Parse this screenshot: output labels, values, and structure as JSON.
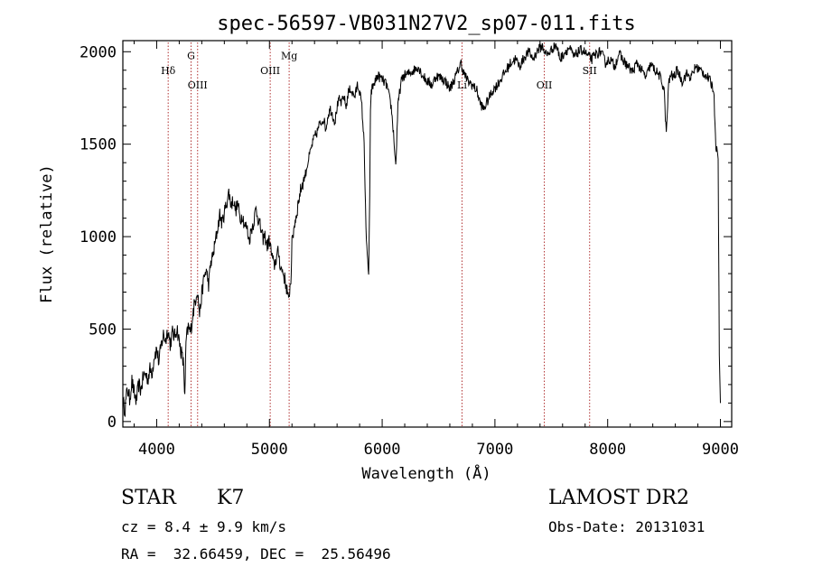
{
  "chart_data": {
    "type": "line",
    "title": "spec-56597-VB031N27V2_sp07-011.fits",
    "xlabel": "Wavelength (Å)",
    "ylabel": "Flux (relative)",
    "xlim": [
      3700,
      9100
    ],
    "ylim": [
      -30,
      2060
    ],
    "xticks": [
      4000,
      5000,
      6000,
      7000,
      8000,
      9000
    ],
    "yticks": [
      0,
      500,
      1000,
      1500,
      2000
    ],
    "grid": false,
    "legend": "none",
    "line_color": "#000000",
    "marker_color": "#b03030",
    "lines": [
      {
        "name": "Hδ",
        "x": 4102,
        "label_y": 1880
      },
      {
        "name": "G",
        "x": 4305,
        "label_y": 1960
      },
      {
        "name": "OIII",
        "x": 4363,
        "label_y": 1800
      },
      {
        "name": "OIII",
        "x": 5007,
        "label_y": 1880
      },
      {
        "name": "Mg",
        "x": 5175,
        "label_y": 1960
      },
      {
        "name": "Li",
        "x": 6708,
        "label_y": 1800
      },
      {
        "name": "OII",
        "x": 7438,
        "label_y": 1800
      },
      {
        "name": "SII",
        "x": 7840,
        "label_y": 1880
      }
    ],
    "series": [
      {
        "x": [
          3700,
          3720,
          3740,
          3760,
          3780,
          3800,
          3820,
          3840,
          3860,
          3880,
          3900,
          3920,
          3940,
          3960,
          3980,
          4000,
          4020,
          4040,
          4060,
          4080,
          4100,
          4120,
          4140,
          4160,
          4180,
          4200,
          4220,
          4240,
          4250,
          4260,
          4280,
          4300,
          4320,
          4340,
          4360,
          4380,
          4400,
          4420,
          4440,
          4460,
          4480,
          4500,
          4520,
          4540,
          4560,
          4580,
          4600,
          4620,
          4640,
          4660,
          4680,
          4700,
          4720,
          4740,
          4760,
          4780,
          4800,
          4820,
          4840,
          4860,
          4880,
          4900,
          4920,
          4940,
          4960,
          4980,
          5000,
          5020,
          5040,
          5060,
          5080,
          5100,
          5120,
          5140,
          5160,
          5170,
          5180,
          5190,
          5200,
          5220,
          5240,
          5260,
          5280,
          5300,
          5320,
          5340,
          5360,
          5380,
          5400,
          5420,
          5440,
          5460,
          5480,
          5500,
          5520,
          5540,
          5560,
          5580,
          5600,
          5620,
          5640,
          5660,
          5680,
          5700,
          5720,
          5740,
          5760,
          5780,
          5800,
          5820,
          5840,
          5860,
          5880,
          5890,
          5896,
          5900,
          5910,
          5930,
          5960,
          6000,
          6040,
          6080,
          6100,
          6120,
          6140,
          6150,
          6160,
          6170,
          6190,
          6230,
          6280,
          6320,
          6360,
          6400,
          6440,
          6480,
          6520,
          6563,
          6600,
          6640,
          6680,
          6700,
          6720,
          6760,
          6800,
          6840,
          6870,
          6900,
          6940,
          6980,
          7020,
          7060,
          7100,
          7140,
          7180,
          7220,
          7260,
          7300,
          7340,
          7380,
          7420,
          7460,
          7500,
          7540,
          7580,
          7620,
          7660,
          7700,
          7740,
          7780,
          7820,
          7860,
          7900,
          7940,
          7980,
          8020,
          8060,
          8100,
          8140,
          8180,
          8220,
          8260,
          8300,
          8340,
          8380,
          8420,
          8460,
          8500,
          8520,
          8540,
          8560,
          8580,
          8620,
          8660,
          8700,
          8740,
          8780,
          8820,
          8860,
          8900,
          8940,
          8960,
          8980,
          8990,
          9000
        ],
        "y": [
          100,
          70,
          180,
          120,
          220,
          150,
          110,
          200,
          170,
          240,
          260,
          230,
          280,
          270,
          360,
          390,
          320,
          410,
          470,
          440,
          500,
          420,
          480,
          460,
          510,
          430,
          370,
          300,
          120,
          430,
          510,
          480,
          580,
          650,
          720,
          580,
          690,
          780,
          820,
          740,
          860,
          900,
          970,
          1040,
          1120,
          1070,
          1130,
          1180,
          1240,
          1170,
          1200,
          1140,
          1180,
          1090,
          1120,
          1060,
          1050,
          980,
          1040,
          1080,
          1150,
          1100,
          1050,
          990,
          1000,
          950,
          980,
          900,
          840,
          880,
          920,
          830,
          810,
          760,
          700,
          640,
          720,
          760,
          960,
          1060,
          1120,
          1200,
          1260,
          1300,
          1340,
          1400,
          1450,
          1500,
          1540,
          1560,
          1600,
          1620,
          1640,
          1580,
          1660,
          1690,
          1660,
          1620,
          1700,
          1740,
          1720,
          1760,
          1700,
          1780,
          1800,
          1770,
          1760,
          1820,
          1790,
          1700,
          1500,
          960,
          800,
          1200,
          1680,
          1760,
          1800,
          1830,
          1870,
          1850,
          1820,
          1700,
          1560,
          1380,
          1700,
          1760,
          1800,
          1840,
          1870,
          1880,
          1900,
          1920,
          1870,
          1840,
          1820,
          1870,
          1860,
          1840,
          1800,
          1850,
          1910,
          1940,
          1890,
          1840,
          1820,
          1790,
          1720,
          1690,
          1740,
          1790,
          1820,
          1860,
          1900,
          1940,
          1960,
          1920,
          1970,
          2000,
          1960,
          2010,
          2030,
          1980,
          2010,
          2040,
          1960,
          2000,
          2020,
          1970,
          2000,
          2010,
          1980,
          1960,
          1990,
          2000,
          1940,
          1960,
          1920,
          1990,
          1950,
          1920,
          1890,
          1940,
          1900,
          1860,
          1930,
          1900,
          1870,
          1800,
          1550,
          1820,
          1880,
          1860,
          1900,
          1840,
          1880,
          1860,
          1920,
          1900,
          1880,
          1850,
          1800,
          1500,
          1420,
          360,
          100
        ]
      }
    ]
  },
  "info": {
    "class": "STAR",
    "subclass": "K7",
    "survey": "LAMOST DR2",
    "cz": "cz = 8.4 ± 9.9 km/s",
    "obs_date": "Obs-Date: 20131031",
    "coords": "RA =  32.66459, DEC =  25.56496"
  }
}
